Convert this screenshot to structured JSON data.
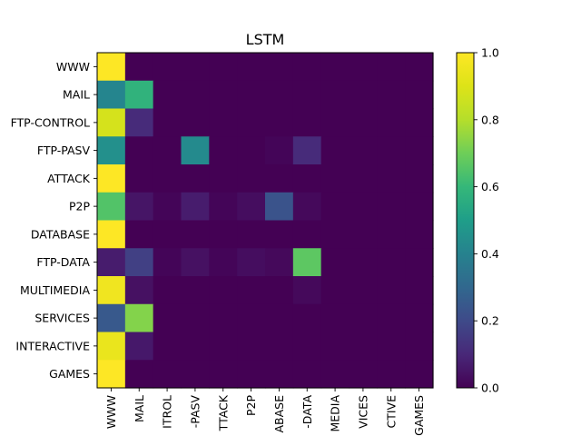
{
  "chart_data": {
    "type": "heatmap",
    "title": "LSTM",
    "xlabel": "",
    "ylabel": "",
    "row_labels": [
      "WWW",
      "MAIL",
      "FTP-CONTROL",
      "FTP-PASV",
      "ATTACK",
      "P2P",
      "DATABASE",
      "FTP-DATA",
      "MULTIMEDIA",
      "SERVICES",
      "INTERACTIVE",
      "GAMES"
    ],
    "col_tick_labels": [
      "WWW",
      "MAIL",
      "ITROL",
      "-PASV",
      "TTACK",
      "P2P",
      "ABASE",
      "-DATA",
      "MEDIA",
      "VICES",
      "CTIVE",
      "GAMES"
    ],
    "values": [
      [
        1.0,
        0.0,
        0.0,
        0.0,
        0.0,
        0.0,
        0.0,
        0.0,
        0.0,
        0.0,
        0.0,
        0.0
      ],
      [
        0.41,
        0.58,
        0.0,
        0.0,
        0.0,
        0.0,
        0.0,
        0.0,
        0.0,
        0.0,
        0.0,
        0.0
      ],
      [
        0.88,
        0.11,
        0.0,
        0.0,
        0.0,
        0.0,
        0.0,
        0.0,
        0.0,
        0.0,
        0.0,
        0.0
      ],
      [
        0.45,
        0.0,
        0.0,
        0.43,
        0.0,
        0.0,
        0.01,
        0.11,
        0.0,
        0.0,
        0.0,
        0.0
      ],
      [
        1.0,
        0.0,
        0.0,
        0.0,
        0.0,
        0.0,
        0.0,
        0.0,
        0.0,
        0.0,
        0.0,
        0.0
      ],
      [
        0.65,
        0.05,
        0.01,
        0.07,
        0.01,
        0.03,
        0.23,
        0.02,
        0.0,
        0.0,
        0.0,
        0.0
      ],
      [
        1.0,
        0.0,
        0.0,
        0.0,
        0.0,
        0.0,
        0.0,
        0.0,
        0.0,
        0.0,
        0.0,
        0.0
      ],
      [
        0.07,
        0.17,
        0.01,
        0.04,
        0.01,
        0.03,
        0.02,
        0.67,
        0.0,
        0.0,
        0.0,
        0.0
      ],
      [
        0.96,
        0.04,
        0.0,
        0.0,
        0.0,
        0.0,
        0.0,
        0.02,
        0.0,
        0.0,
        0.0,
        0.0
      ],
      [
        0.25,
        0.73,
        0.0,
        0.0,
        0.0,
        0.0,
        0.0,
        0.0,
        0.0,
        0.0,
        0.0,
        0.0
      ],
      [
        0.94,
        0.06,
        0.0,
        0.0,
        0.0,
        0.0,
        0.0,
        0.0,
        0.0,
        0.0,
        0.0,
        0.0
      ],
      [
        1.0,
        0.0,
        0.0,
        0.0,
        0.0,
        0.0,
        0.0,
        0.0,
        0.0,
        0.0,
        0.0,
        0.0
      ]
    ],
    "vmin": 0.0,
    "vmax": 1.0,
    "colormap": "viridis",
    "colorbar_ticks": [
      0.0,
      0.2,
      0.4,
      0.6,
      0.8,
      1.0
    ],
    "colorbar_tick_labels": [
      "0.0",
      "0.2",
      "0.4",
      "0.6",
      "0.8",
      "1.0"
    ],
    "grid": false
  }
}
